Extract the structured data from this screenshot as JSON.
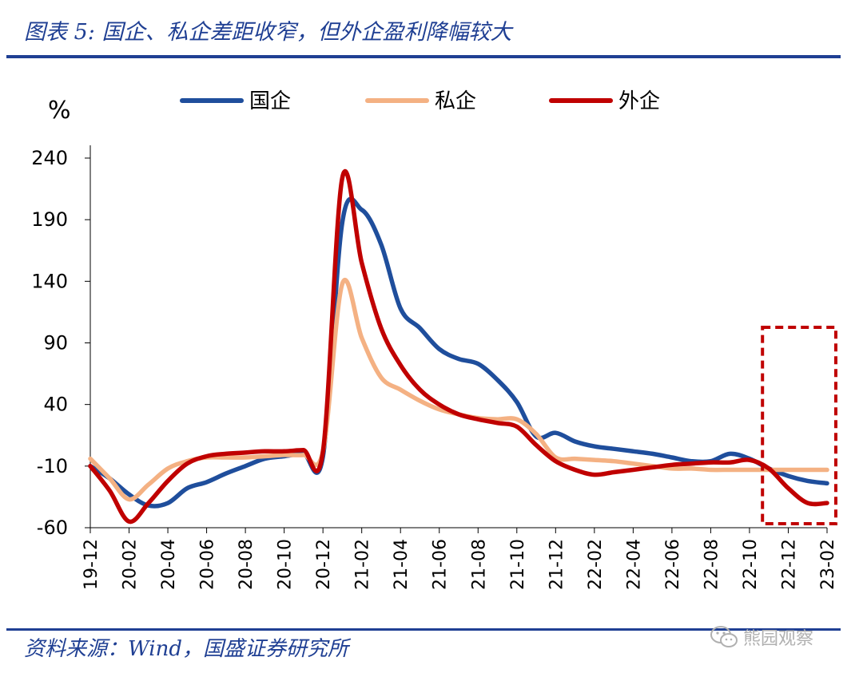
{
  "header": {
    "title": "图表 5:  国企、私企差距收窄，但外企盈利降幅较大"
  },
  "footer": {
    "source": "资料来源：Wind，国盛证券研究所"
  },
  "watermark": {
    "text": "熊园观察",
    "icon": "wechat-icon"
  },
  "chart_data": {
    "type": "line",
    "ylabel": "%",
    "ylim": [
      -60,
      240
    ],
    "yticks": [
      240,
      190,
      140,
      90,
      40,
      -10,
      -60
    ],
    "x": [
      "19-12",
      "20-01",
      "20-02",
      "20-03",
      "20-04",
      "20-05",
      "20-06",
      "20-07",
      "20-08",
      "20-09",
      "20-10",
      "20-11",
      "20-12",
      "21-01",
      "21-02",
      "21-03",
      "21-04",
      "21-05",
      "21-06",
      "21-07",
      "21-08",
      "21-09",
      "21-10",
      "21-11",
      "21-12",
      "22-01",
      "22-02",
      "22-03",
      "22-04",
      "22-05",
      "22-06",
      "22-07",
      "22-08",
      "22-09",
      "22-10",
      "22-11",
      "22-12",
      "23-01",
      "23-02"
    ],
    "xtick_labels": [
      "19-12",
      "20-02",
      "20-04",
      "20-06",
      "20-08",
      "20-10",
      "20-12",
      "21-02",
      "21-04",
      "21-06",
      "21-08",
      "21-10",
      "21-12",
      "22-02",
      "22-04",
      "22-06",
      "22-08",
      "22-10",
      "22-12",
      "23-02"
    ],
    "series": [
      {
        "name": "国企",
        "color": "#1f4e9c",
        "values": [
          -10,
          -20,
          -33,
          -42,
          -40,
          -28,
          -23,
          -16,
          -10,
          -4,
          -2,
          0,
          -2,
          188,
          198,
          170,
          118,
          102,
          85,
          77,
          73,
          60,
          42,
          14,
          17,
          10,
          6,
          4,
          2,
          0,
          -3,
          -6,
          -6,
          0,
          -4,
          -12,
          -18,
          -22,
          -24
        ]
      },
      {
        "name": "私企",
        "color": "#f4b183",
        "values": [
          -4,
          -20,
          -37,
          -25,
          -12,
          -6,
          -3,
          -3,
          -3,
          -2,
          -1,
          -1,
          2,
          138,
          94,
          62,
          52,
          43,
          36,
          32,
          29,
          28,
          28,
          16,
          -3,
          -4,
          -5,
          -6,
          -8,
          -10,
          -12,
          -12,
          -13,
          -13,
          -13,
          -13,
          -13,
          -13,
          -13
        ]
      },
      {
        "name": "外企",
        "color": "#c00000",
        "values": [
          -10,
          -30,
          -55,
          -40,
          -22,
          -8,
          -2,
          0,
          1,
          2,
          2,
          3,
          2,
          224,
          155,
          102,
          72,
          52,
          40,
          32,
          28,
          25,
          22,
          7,
          -6,
          -13,
          -17,
          -15,
          -13,
          -11,
          -9,
          -8,
          -7,
          -7,
          -5,
          -12,
          -28,
          -40,
          -40
        ]
      }
    ],
    "legend": "top",
    "grid": false,
    "highlight_box": {
      "x_from": "22-11",
      "x_to": "23-02",
      "color": "#c00000",
      "style": "dashed"
    }
  }
}
